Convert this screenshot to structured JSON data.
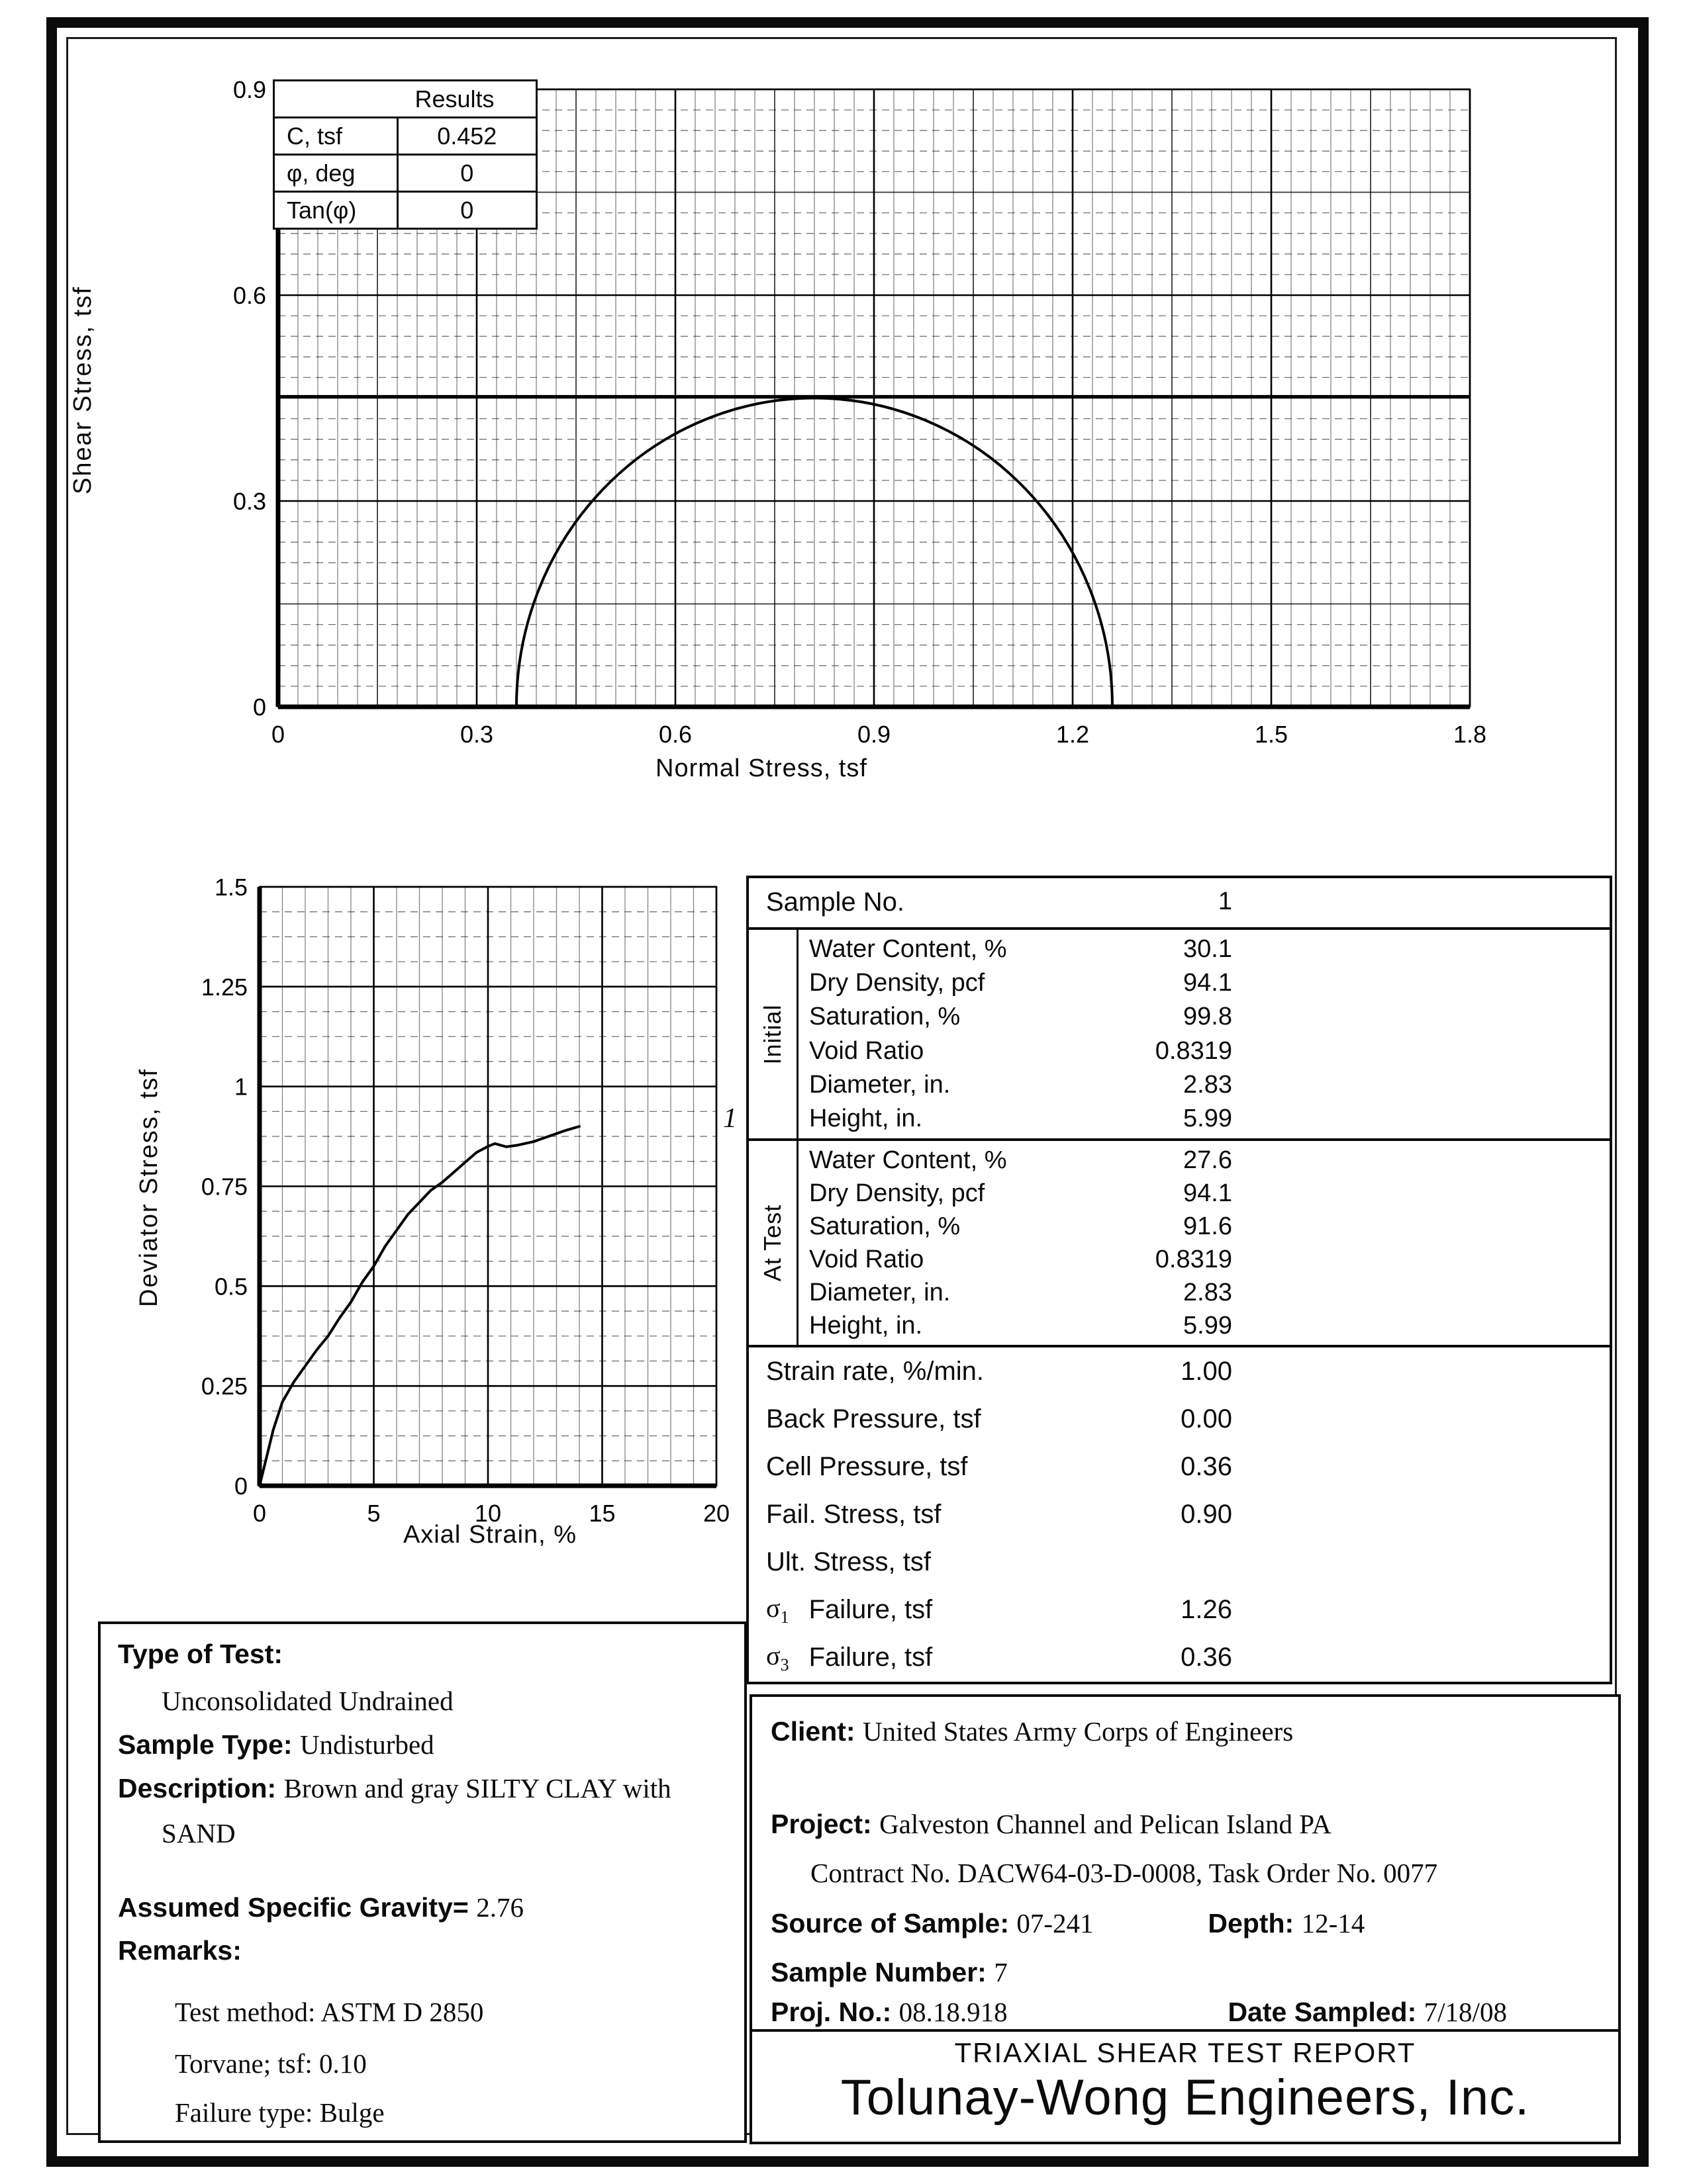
{
  "report": {
    "title": "TRIAXIAL SHEAR TEST REPORT",
    "company": "Tolunay-Wong Engineers, Inc."
  },
  "results_table": {
    "header": "Results",
    "rows": [
      {
        "label": "C, tsf",
        "value": "0.452"
      },
      {
        "label": "φ, deg",
        "value": "0"
      },
      {
        "label": "Tan(φ)",
        "value": "0"
      }
    ]
  },
  "sample_table": {
    "sample_no_label": "Sample No.",
    "sample_no_value": "1",
    "initial_label": "Initial",
    "at_test_label": "At Test",
    "initial_rows": [
      {
        "label": "Water Content, %",
        "value": "30.1"
      },
      {
        "label": "Dry Density, pcf",
        "value": "94.1"
      },
      {
        "label": "Saturation, %",
        "value": "99.8"
      },
      {
        "label": "Void Ratio",
        "value": "0.8319"
      },
      {
        "label": "Diameter, in.",
        "value": "2.83"
      },
      {
        "label": "Height, in.",
        "value": "5.99"
      }
    ],
    "at_test_rows": [
      {
        "label": "Water Content, %",
        "value": "27.6"
      },
      {
        "label": "Dry Density, pcf",
        "value": "94.1"
      },
      {
        "label": "Saturation, %",
        "value": "91.6"
      },
      {
        "label": "Void Ratio",
        "value": "0.8319"
      },
      {
        "label": "Diameter, in.",
        "value": "2.83"
      },
      {
        "label": "Height, in.",
        "value": "5.99"
      }
    ],
    "single_rows": [
      {
        "label": "Strain rate, %/min.",
        "value": "1.00"
      },
      {
        "label": "Back Pressure, tsf",
        "value": "0.00"
      },
      {
        "label": "Cell Pressure, tsf",
        "value": "0.36"
      },
      {
        "label": "Fail. Stress, tsf",
        "value": "0.90"
      },
      {
        "label": "Ult. Stress, tsf",
        "value": ""
      },
      {
        "sigma": "σ",
        "sub": "1",
        "label": "Failure, tsf",
        "value": "1.26"
      },
      {
        "sigma": "σ",
        "sub": "3",
        "label": "Failure, tsf",
        "value": "0.36"
      }
    ]
  },
  "test_info": {
    "type_label": "Type of Test:",
    "type_value": "Unconsolidated Undrained",
    "sample_type_label": "Sample Type:",
    "sample_type_value": "Undisturbed",
    "description_label": "Description:",
    "description_line1": "Brown and gray SILTY CLAY with",
    "description_line2": "SAND",
    "gravity_label": "Assumed Specific Gravity=",
    "gravity_value": "2.76",
    "remarks_label": "Remarks:",
    "remarks": [
      "Test method: ASTM D 2850",
      "Torvane; tsf: 0.10",
      "Failure type: Bulge"
    ]
  },
  "project_info": {
    "client_label": "Client:",
    "client": "United States Army Corps of Engineers",
    "project_label": "Project:",
    "project": "Galveston Channel and Pelican Island PA",
    "contract": "Contract No. DACW64-03-D-0008, Task Order No. 0077",
    "source_label": "Source of Sample:",
    "source": "07-241",
    "depth_label": "Depth:",
    "depth": "12-14",
    "sample_number_label": "Sample Number:",
    "sample_number": "7",
    "proj_no_label": "Proj. No.:",
    "proj_no": "08.18.918",
    "date_label": "Date Sampled:",
    "date": "7/18/08"
  },
  "chart_data": [
    {
      "type": "line",
      "title": "Mohr circle failure envelope",
      "xlabel": "Normal Stress, tsf",
      "ylabel": "Shear Stress, tsf",
      "xlim": [
        0,
        1.8
      ],
      "ylim": [
        0,
        0.9
      ],
      "x_ticks": [
        "0",
        "0.3",
        "0.6",
        "0.9",
        "1.2",
        "1.5",
        "1.8"
      ],
      "y_ticks": [
        "0",
        "0.3",
        "0.6",
        "0.9"
      ],
      "grid": "on",
      "failure_envelope": {
        "cohesion": 0.452,
        "phi_deg": 0
      },
      "mohr_circles": [
        {
          "sigma3": 0.36,
          "sigma1": 1.26
        }
      ]
    },
    {
      "type": "line",
      "title": "Deviator stress vs axial strain",
      "xlabel": "Axial Strain, %",
      "ylabel": "Deviator Stress, tsf",
      "xlim": [
        0,
        20
      ],
      "ylim": [
        0,
        1.5
      ],
      "x_ticks": [
        "0",
        "5",
        "10",
        "15",
        "20"
      ],
      "y_ticks": [
        "0",
        "0.25",
        "0.5",
        "0.75",
        "1",
        "1.25",
        "1.5"
      ],
      "grid": "on",
      "legend_position": "right-of-curve-end",
      "series": [
        {
          "name": "1",
          "x": [
            0,
            0.3,
            0.6,
            1,
            1.5,
            2,
            2.5,
            3,
            3.5,
            4,
            4.5,
            5,
            5.5,
            6,
            6.5,
            7,
            7.5,
            8,
            8.5,
            9,
            9.5,
            10,
            10.3,
            10.8,
            11.3,
            12,
            12.5,
            13,
            13.4,
            14
          ],
          "y": [
            0,
            0.07,
            0.14,
            0.21,
            0.26,
            0.3,
            0.34,
            0.375,
            0.42,
            0.46,
            0.51,
            0.55,
            0.6,
            0.64,
            0.68,
            0.71,
            0.74,
            0.76,
            0.785,
            0.81,
            0.835,
            0.85,
            0.857,
            0.849,
            0.853,
            0.862,
            0.872,
            0.882,
            0.89,
            0.9
          ]
        }
      ]
    }
  ]
}
